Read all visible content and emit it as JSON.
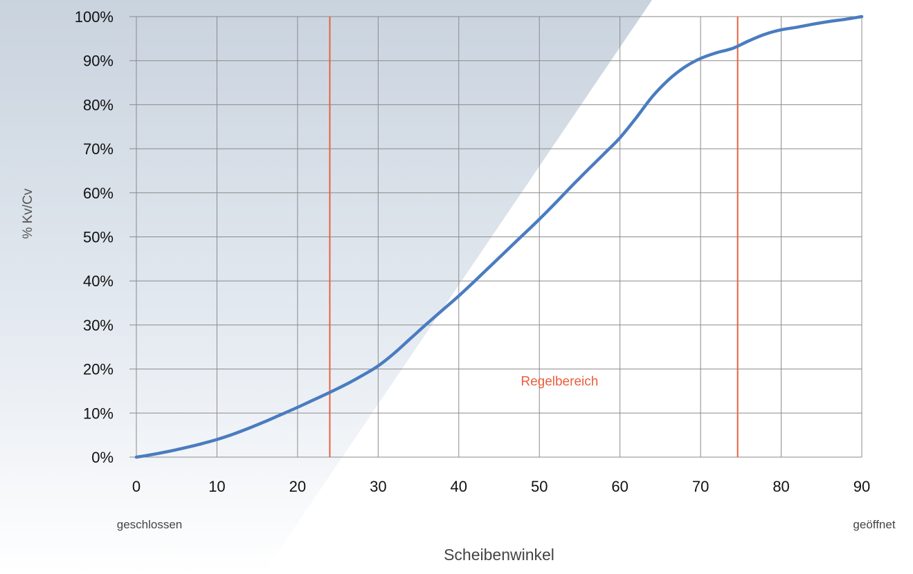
{
  "chart_data": {
    "type": "line",
    "xlabel": "Scheibenwinkel",
    "ylabel": "% Kv/Cv",
    "xlim": [
      0,
      90
    ],
    "ylim": [
      0,
      100
    ],
    "x_ticks": [
      "0",
      "10",
      "20",
      "30",
      "40",
      "50",
      "60",
      "70",
      "80",
      "90"
    ],
    "y_ticks": [
      "0%",
      "10%",
      "20%",
      "30%",
      "40%",
      "50%",
      "60%",
      "70%",
      "80%",
      "90%",
      "100%"
    ],
    "x_start_label": "geschlossen",
    "x_end_label": "geöffnet",
    "grid": true,
    "series": [
      {
        "color": "#4a7cc0",
        "x": [
          0,
          2,
          4,
          6,
          8,
          10,
          12,
          14,
          16,
          18,
          20,
          22,
          24,
          26,
          28,
          30,
          32,
          34,
          36,
          38,
          40,
          42,
          44,
          46,
          48,
          50,
          52,
          54,
          56,
          58,
          60,
          62,
          64,
          66,
          68,
          70,
          72,
          74,
          76,
          78,
          80,
          82,
          84,
          86,
          88,
          90
        ],
        "y": [
          0,
          0.6,
          1.3,
          2.1,
          3.0,
          4.0,
          5.2,
          6.6,
          8.1,
          9.7,
          11.3,
          13.0,
          14.7,
          16.5,
          18.5,
          20.7,
          23.6,
          26.9,
          30.2,
          33.4,
          36.6,
          40.0,
          43.5,
          47.0,
          50.5,
          54.0,
          57.7,
          61.5,
          65.2,
          68.8,
          72.5,
          77.0,
          81.8,
          85.6,
          88.5,
          90.5,
          91.8,
          92.8,
          94.5,
          96.0,
          97.0,
          97.6,
          98.3,
          98.9,
          99.4,
          100
        ]
      }
    ],
    "vertical_lines": [
      {
        "x": 24,
        "color": "#e8603c"
      },
      {
        "x": 74.6,
        "color": "#e8603c"
      }
    ],
    "annotations": [
      {
        "text": "Regelbereich",
        "x": 52.5,
        "y": 15.8,
        "color": "#e8603c"
      }
    ]
  }
}
